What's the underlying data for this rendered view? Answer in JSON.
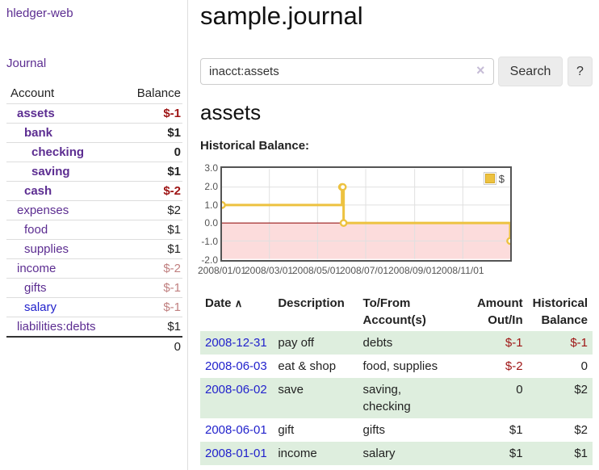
{
  "app": {
    "title": "hledger-web"
  },
  "sidebar": {
    "nav_journal": "Journal",
    "accounts": {
      "col_account": "Account",
      "col_balance": "Balance",
      "rows": [
        {
          "name": "assets",
          "level": 1,
          "bold": true,
          "balance": "$-1",
          "tone": "neg-strong",
          "link": "purple"
        },
        {
          "name": "bank",
          "level": 2,
          "bold": true,
          "balance": "$1",
          "tone": "normal",
          "link": "purple"
        },
        {
          "name": "checking",
          "level": 3,
          "bold": true,
          "balance": "0",
          "tone": "normal",
          "link": "purple"
        },
        {
          "name": "saving",
          "level": 3,
          "bold": true,
          "balance": "$1",
          "tone": "normal",
          "link": "purple"
        },
        {
          "name": "cash",
          "level": 2,
          "bold": true,
          "balance": "$-2",
          "tone": "neg-strong",
          "link": "purple"
        },
        {
          "name": "expenses",
          "level": 1,
          "bold": false,
          "balance": "$2",
          "tone": "normal",
          "link": "purple"
        },
        {
          "name": "food",
          "level": 2,
          "bold": false,
          "balance": "$1",
          "tone": "normal",
          "link": "purple"
        },
        {
          "name": "supplies",
          "level": 2,
          "bold": false,
          "balance": "$1",
          "tone": "normal",
          "link": "purple"
        },
        {
          "name": "income",
          "level": 1,
          "bold": false,
          "balance": "$-2",
          "tone": "neg-soft",
          "link": "purple"
        },
        {
          "name": "gifts",
          "level": 2,
          "bold": false,
          "balance": "$-1",
          "tone": "neg-soft",
          "link": "purple"
        },
        {
          "name": "salary",
          "level": 2,
          "bold": false,
          "balance": "$-1",
          "tone": "neg-soft",
          "link": "blue"
        },
        {
          "name": "liabilities:debts",
          "level": 1,
          "bold": false,
          "balance": "$1",
          "tone": "normal",
          "link": "purple"
        }
      ],
      "total": "0"
    }
  },
  "main": {
    "title": "sample.journal",
    "search": {
      "value": "inacct:assets",
      "clear_icon": "×",
      "button": "Search",
      "help_button": "?"
    },
    "account_heading": "assets",
    "chart_label": "Historical Balance:"
  },
  "chart_data": {
    "type": "line",
    "step": true,
    "title": "Historical Balance",
    "legend": [
      {
        "label": "$",
        "color": "#edc240"
      }
    ],
    "y_ticks": [
      {
        "label": "3.0",
        "value": 3
      },
      {
        "label": "2.0",
        "value": 2
      },
      {
        "label": "1.0",
        "value": 1
      },
      {
        "label": "0.0",
        "value": 0
      },
      {
        "label": "-1.0",
        "value": -1
      },
      {
        "label": "-2.0",
        "value": -2
      }
    ],
    "x_ticks": [
      {
        "label": "2008/01/01",
        "day": 0
      },
      {
        "label": "2008/03/01",
        "day": 60
      },
      {
        "label": "2008/05/01",
        "day": 121
      },
      {
        "label": "2008/07/01",
        "day": 182
      },
      {
        "label": "2008/09/01",
        "day": 244
      },
      {
        "label": "2008/11/01",
        "day": 305
      }
    ],
    "ylim": [
      -2,
      3
    ],
    "xlim_days": [
      0,
      365
    ],
    "points": [
      {
        "date": "2008-01-01",
        "day": 0,
        "value": 1
      },
      {
        "date": "2008-06-01",
        "day": 152,
        "value": 2
      },
      {
        "date": "2008-06-02",
        "day": 153,
        "value": 2
      },
      {
        "date": "2008-06-03",
        "day": 154,
        "value": 0
      },
      {
        "date": "2008-12-31",
        "day": 365,
        "value": -1
      }
    ],
    "colors": {
      "line": "#edc240",
      "marker_fill": "#ffffff",
      "negative_fill": "#fcdcdc",
      "zero_line": "#8b0000",
      "grid": "#e0e0e0",
      "border": "#545454"
    }
  },
  "register": {
    "headers": {
      "date": "Date",
      "description": "Description",
      "account": "To/From\nAccount(s)",
      "amount": "Amount\nOut/In",
      "balance": "Historical\nBalance"
    },
    "sort_icon": "∧",
    "rows": [
      {
        "date": "2008-12-31",
        "description": "pay off",
        "accounts": "debts",
        "amount": "$-1",
        "amount_neg": true,
        "balance": "$-1",
        "balance_neg": true
      },
      {
        "date": "2008-06-03",
        "description": "eat & shop",
        "accounts": "food, supplies",
        "amount": "$-2",
        "amount_neg": true,
        "balance": "0",
        "balance_neg": false
      },
      {
        "date": "2008-06-02",
        "description": "save",
        "accounts": "saving,\nchecking",
        "amount": "0",
        "amount_neg": false,
        "balance": "$2",
        "balance_neg": false
      },
      {
        "date": "2008-06-01",
        "description": "gift",
        "accounts": "gifts",
        "amount": "$1",
        "amount_neg": false,
        "balance": "$2",
        "balance_neg": false
      },
      {
        "date": "2008-01-01",
        "description": "income",
        "accounts": "salary",
        "amount": "$1",
        "amount_neg": false,
        "balance": "$1",
        "balance_neg": false
      }
    ]
  }
}
